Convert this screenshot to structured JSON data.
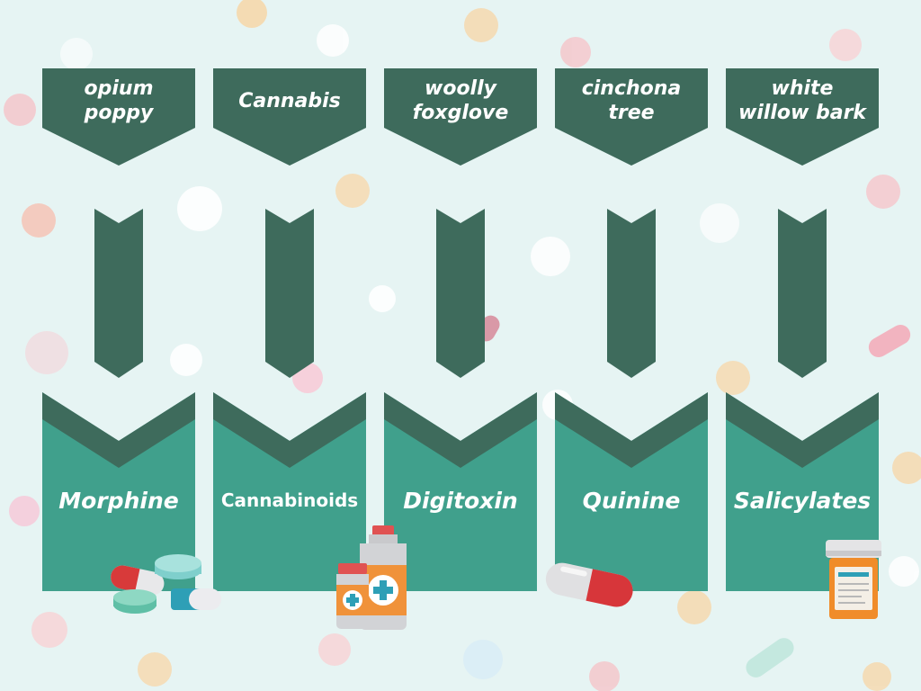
{
  "colors": {
    "background": "#e6f4f3",
    "dark_green": "#3e6b5c",
    "teal": "#40a08c",
    "label_text": "#ffffff"
  },
  "columns": [
    {
      "plant": "opium poppy",
      "drug": "Morphine"
    },
    {
      "plant": "Cannabis",
      "drug": "Cannabinoids"
    },
    {
      "plant": "woolly foxglove",
      "drug": "Digitoxin"
    },
    {
      "plant": "cinchona tree",
      "drug": "Quinine"
    },
    {
      "plant": "white willow bark",
      "drug": "Salicylates"
    }
  ],
  "illustrations": {
    "pills_group": "pills-icon",
    "medicine_bottles": "medicine-bottles-icon",
    "capsule": "capsule-icon",
    "prescription_bottle": "prescription-bottle-icon"
  }
}
